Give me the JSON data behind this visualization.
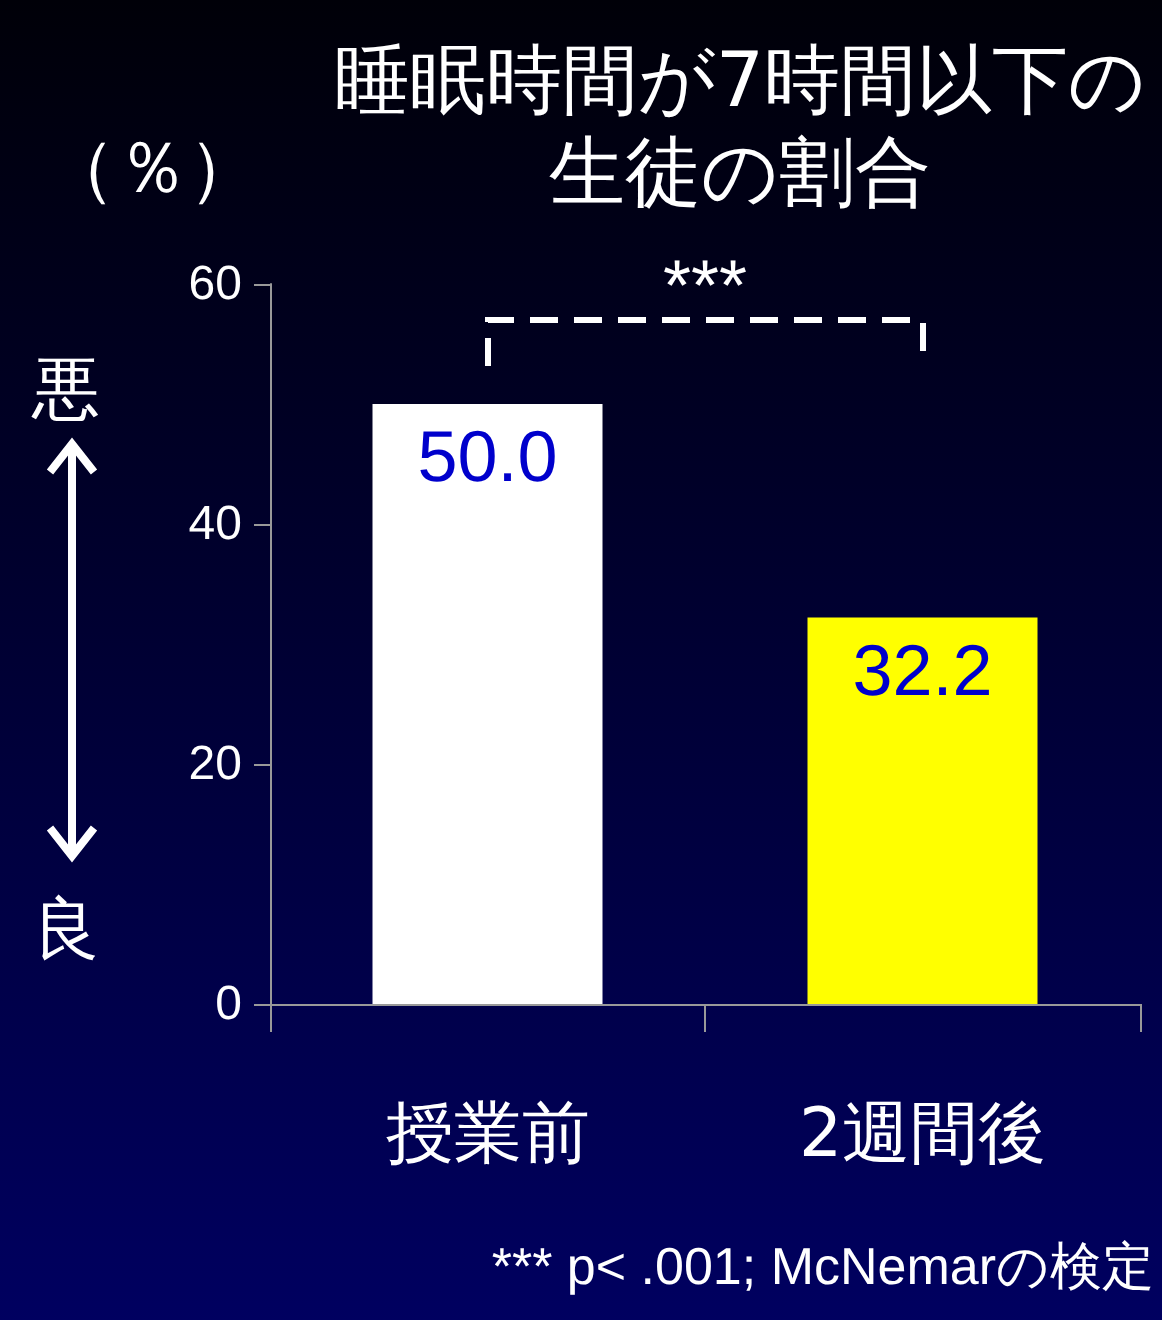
{
  "chart_data": {
    "type": "bar",
    "title": "睡眠時間が7時間以下の生徒の割合",
    "ylabel": "（％）",
    "categories": [
      "授業前",
      "2週間後"
    ],
    "values": [
      50.0,
      32.2
    ],
    "colors": [
      "#ffffff",
      "#ffff00"
    ],
    "value_labels": [
      "50.0",
      "32.2"
    ],
    "ylim": [
      0,
      60
    ],
    "yticks": [
      0,
      20,
      40,
      60
    ],
    "grid": false,
    "annotations": [
      "***",
      "悪",
      "良",
      "*** p< .001;  McNemarの検定"
    ]
  }
}
